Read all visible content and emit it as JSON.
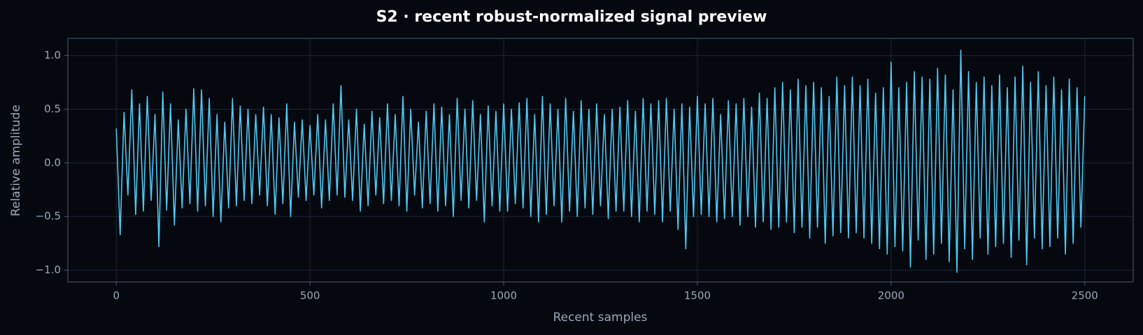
{
  "chart_data": {
    "type": "line",
    "title": "S2 · recent robust-normalized signal preview",
    "xlabel": "Recent samples",
    "ylabel": "Relative amplitude",
    "grid": true,
    "xlim": [
      -125,
      2625
    ],
    "ylim": [
      -1.11,
      1.16
    ],
    "xticks": [
      0,
      500,
      1000,
      1500,
      2000,
      2500
    ],
    "yticks": [
      {
        "value": 1.0,
        "label": "1.0"
      },
      {
        "value": 0.5,
        "label": "0.5"
      },
      {
        "value": 0.0,
        "label": "0.0"
      },
      {
        "value": -0.5,
        "label": "−0.5"
      },
      {
        "value": -1.0,
        "label": "−1.0"
      }
    ],
    "x": [
      0,
      10,
      20,
      30,
      40,
      50,
      60,
      70,
      80,
      90,
      100,
      110,
      120,
      130,
      140,
      150,
      160,
      170,
      180,
      190,
      200,
      210,
      220,
      230,
      240,
      250,
      260,
      270,
      280,
      290,
      300,
      310,
      320,
      330,
      340,
      350,
      360,
      370,
      380,
      390,
      400,
      410,
      420,
      430,
      440,
      450,
      460,
      470,
      480,
      490,
      500,
      510,
      520,
      530,
      540,
      550,
      560,
      570,
      580,
      590,
      600,
      610,
      620,
      630,
      640,
      650,
      660,
      670,
      680,
      690,
      700,
      710,
      720,
      730,
      740,
      750,
      760,
      770,
      780,
      790,
      800,
      810,
      820,
      830,
      840,
      850,
      860,
      870,
      880,
      890,
      900,
      910,
      920,
      930,
      940,
      950,
      960,
      970,
      980,
      990,
      1000,
      1010,
      1020,
      1030,
      1040,
      1050,
      1060,
      1070,
      1080,
      1090,
      1100,
      1110,
      1120,
      1130,
      1140,
      1150,
      1160,
      1170,
      1180,
      1190,
      1200,
      1210,
      1220,
      1230,
      1240,
      1250,
      1260,
      1270,
      1280,
      1290,
      1300,
      1310,
      1320,
      1330,
      1340,
      1350,
      1360,
      1370,
      1380,
      1390,
      1400,
      1410,
      1420,
      1430,
      1440,
      1450,
      1460,
      1470,
      1480,
      1490,
      1500,
      1510,
      1520,
      1530,
      1540,
      1550,
      1560,
      1570,
      1580,
      1590,
      1600,
      1610,
      1620,
      1630,
      1640,
      1650,
      1660,
      1670,
      1680,
      1690,
      1700,
      1710,
      1720,
      1730,
      1740,
      1750,
      1760,
      1770,
      1780,
      1790,
      1800,
      1810,
      1820,
      1830,
      1840,
      1850,
      1860,
      1870,
      1880,
      1890,
      1900,
      1910,
      1920,
      1930,
      1940,
      1950,
      1960,
      1970,
      1980,
      1990,
      2000,
      2010,
      2020,
      2030,
      2040,
      2050,
      2060,
      2070,
      2080,
      2090,
      2100,
      2110,
      2120,
      2130,
      2140,
      2150,
      2160,
      2170,
      2180,
      2190,
      2200,
      2210,
      2220,
      2230,
      2240,
      2250,
      2260,
      2270,
      2280,
      2290,
      2300,
      2310,
      2320,
      2330,
      2340,
      2350,
      2360,
      2370,
      2380,
      2390,
      2400,
      2410,
      2420,
      2430,
      2440,
      2450,
      2460,
      2470,
      2480,
      2490,
      2500
    ],
    "series": [
      {
        "color": "#4fc8f0",
        "values": [
          0.32,
          -0.67,
          0.47,
          -0.3,
          0.68,
          -0.48,
          0.55,
          -0.45,
          0.62,
          -0.35,
          0.45,
          -0.78,
          0.66,
          -0.44,
          0.55,
          -0.58,
          0.4,
          -0.42,
          0.5,
          -0.38,
          0.69,
          -0.45,
          0.68,
          -0.4,
          0.6,
          -0.5,
          0.45,
          -0.55,
          0.38,
          -0.42,
          0.6,
          -0.4,
          0.53,
          -0.35,
          0.5,
          -0.38,
          0.45,
          -0.3,
          0.52,
          -0.4,
          0.45,
          -0.48,
          0.42,
          -0.38,
          0.55,
          -0.5,
          0.38,
          -0.32,
          0.4,
          -0.35,
          0.35,
          -0.3,
          0.45,
          -0.42,
          0.4,
          -0.35,
          0.55,
          -0.3,
          0.72,
          -0.32,
          0.4,
          -0.35,
          0.5,
          -0.45,
          0.36,
          -0.4,
          0.48,
          -0.3,
          0.42,
          -0.38,
          0.55,
          -0.35,
          0.45,
          -0.4,
          0.62,
          -0.45,
          0.5,
          -0.3,
          0.38,
          -0.42,
          0.48,
          -0.38,
          0.55,
          -0.45,
          0.52,
          -0.4,
          0.45,
          -0.5,
          0.6,
          -0.35,
          0.5,
          -0.42,
          0.58,
          -0.35,
          0.45,
          -0.55,
          0.53,
          -0.4,
          0.48,
          -0.45,
          0.55,
          -0.45,
          0.5,
          -0.38,
          0.56,
          -0.42,
          0.6,
          -0.5,
          0.45,
          -0.55,
          0.62,
          -0.48,
          0.55,
          -0.4,
          0.5,
          -0.55,
          0.6,
          -0.45,
          0.48,
          -0.5,
          0.58,
          -0.42,
          0.5,
          -0.48,
          0.55,
          -0.4,
          0.45,
          -0.52,
          0.5,
          -0.45,
          0.52,
          -0.45,
          0.58,
          -0.5,
          0.48,
          -0.55,
          0.6,
          -0.45,
          0.55,
          -0.48,
          0.58,
          -0.55,
          0.6,
          -0.45,
          0.5,
          -0.62,
          0.55,
          -0.8,
          0.52,
          -0.5,
          0.62,
          -0.48,
          0.55,
          -0.5,
          0.6,
          -0.55,
          0.45,
          -0.52,
          0.58,
          -0.5,
          0.55,
          -0.58,
          0.6,
          -0.5,
          0.52,
          -0.6,
          0.65,
          -0.55,
          0.6,
          -0.62,
          0.7,
          -0.6,
          0.75,
          -0.55,
          0.68,
          -0.65,
          0.78,
          -0.6,
          0.72,
          -0.7,
          0.75,
          -0.6,
          0.7,
          -0.75,
          0.62,
          -0.68,
          0.8,
          -0.65,
          0.72,
          -0.7,
          0.8,
          -0.65,
          0.72,
          -0.7,
          0.78,
          -0.75,
          0.65,
          -0.8,
          0.7,
          -0.85,
          0.94,
          -0.78,
          0.7,
          -0.82,
          0.75,
          -0.97,
          0.85,
          -0.72,
          0.8,
          -0.9,
          0.78,
          -0.85,
          0.88,
          -0.75,
          0.82,
          -0.92,
          0.68,
          -1.02,
          1.05,
          -0.8,
          0.85,
          -0.9,
          0.75,
          -0.7,
          0.8,
          -0.85,
          0.72,
          -0.78,
          0.82,
          -0.75,
          0.7,
          -0.88,
          0.8,
          -0.72,
          0.9,
          -0.95,
          0.75,
          -0.7,
          0.85,
          -0.8,
          0.72,
          -0.78,
          0.8,
          -0.7,
          0.68,
          -0.85,
          0.78,
          -0.75,
          0.7,
          -0.6,
          0.62
        ]
      }
    ]
  }
}
